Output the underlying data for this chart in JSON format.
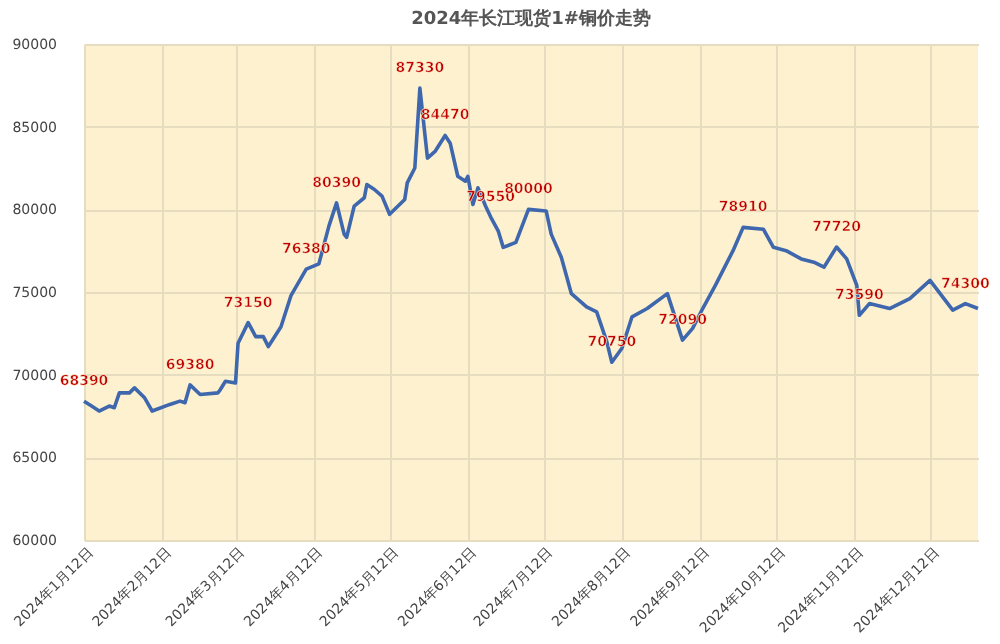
{
  "chart_data": {
    "type": "line",
    "title": "2024年长江现货1#铜价走势",
    "x": [
      "2024-01-12",
      "2024-01-15",
      "2024-01-18",
      "2024-01-22",
      "2024-01-24",
      "2024-01-26",
      "2024-01-30",
      "2024-02-01",
      "2024-02-05",
      "2024-02-08",
      "2024-02-15",
      "2024-02-19",
      "2024-02-21",
      "2024-02-23",
      "2024-02-27",
      "2024-03-05",
      "2024-03-06",
      "2024-03-08",
      "2024-03-12",
      "2024-03-13",
      "2024-03-17",
      "2024-03-20",
      "2024-03-23",
      "2024-03-25",
      "2024-03-30",
      "2024-04-03",
      "2024-04-09",
      "2024-04-14",
      "2024-04-18",
      "2024-04-21",
      "2024-04-24",
      "2024-04-25",
      "2024-04-28",
      "2024-05-02",
      "2024-05-03",
      "2024-05-06",
      "2024-05-09",
      "2024-05-12",
      "2024-05-18",
      "2024-05-19",
      "2024-05-22",
      "2024-05-24",
      "2024-05-27",
      "2024-05-30",
      "2024-06-03",
      "2024-06-05",
      "2024-06-08",
      "2024-06-11",
      "2024-06-12",
      "2024-06-14",
      "2024-06-16",
      "2024-06-19",
      "2024-06-21",
      "2024-06-24",
      "2024-06-26",
      "2024-07-01",
      "2024-07-06",
      "2024-07-13",
      "2024-07-15",
      "2024-07-19",
      "2024-07-23",
      "2024-07-29",
      "2024-08-02",
      "2024-08-06",
      "2024-08-08",
      "2024-08-12",
      "2024-08-16",
      "2024-08-22",
      "2024-08-30",
      "2024-09-05",
      "2024-09-09",
      "2024-09-13",
      "2024-09-18",
      "2024-09-25",
      "2024-09-29",
      "2024-10-07",
      "2024-10-11",
      "2024-10-16",
      "2024-10-22",
      "2024-10-27",
      "2024-10-31",
      "2024-11-05",
      "2024-11-09",
      "2024-11-13",
      "2024-11-14",
      "2024-11-18",
      "2024-11-26",
      "2024-12-04",
      "2024-12-12",
      "2024-12-21",
      "2024-12-26",
      "2024-12-31"
    ],
    "series": [
      {
        "color": "#3f67ad",
        "values": [
          68390,
          68100,
          67800,
          68100,
          68000,
          68900,
          68900,
          69200,
          68600,
          67800,
          68200,
          68400,
          68300,
          69380,
          68800,
          68900,
          69100,
          69600,
          69500,
          71900,
          73150,
          72300,
          72300,
          71700,
          72900,
          74800,
          76380,
          76700,
          79000,
          80390,
          78500,
          78300,
          80200,
          80700,
          81500,
          81200,
          80800,
          79700,
          80600,
          81600,
          82500,
          87330,
          83100,
          83500,
          84470,
          84000,
          82000,
          81700,
          82000,
          80300,
          81300,
          80200,
          79550,
          78700,
          77700,
          78000,
          80000,
          79900,
          78500,
          77100,
          74900,
          74100,
          73800,
          72000,
          70750,
          71600,
          73500,
          74000,
          74900,
          72090,
          72800,
          74000,
          75400,
          77500,
          78910,
          78800,
          77700,
          77500,
          77000,
          76800,
          76500,
          77720,
          77000,
          75400,
          73590,
          74300,
          74000,
          74600,
          75700,
          73900,
          74300,
          74000
        ],
        "value_labels": [
          "68390",
          null,
          null,
          null,
          null,
          null,
          null,
          null,
          null,
          null,
          null,
          null,
          null,
          "69380",
          null,
          null,
          null,
          null,
          null,
          null,
          "73150",
          null,
          null,
          null,
          null,
          null,
          "76380",
          null,
          null,
          "80390",
          null,
          null,
          null,
          null,
          null,
          null,
          null,
          null,
          null,
          null,
          null,
          "87330",
          null,
          null,
          "84470",
          null,
          null,
          null,
          null,
          null,
          null,
          null,
          "79550",
          null,
          null,
          null,
          "80000",
          null,
          null,
          null,
          null,
          null,
          null,
          null,
          "70750",
          null,
          null,
          null,
          null,
          "72090",
          null,
          null,
          null,
          null,
          "78910",
          null,
          null,
          null,
          null,
          null,
          null,
          "77720",
          null,
          null,
          "73590",
          null,
          null,
          null,
          null,
          null,
          "74300",
          null
        ]
      }
    ],
    "xlim": [
      "2024-01-12",
      "2024-12-31"
    ],
    "xticks": [
      {
        "value": "2024-01-12",
        "label": "2024年1月12日"
      },
      {
        "value": "2024-02-12",
        "label": "2024年2月12日"
      },
      {
        "value": "2024-03-12",
        "label": "2024年3月12日"
      },
      {
        "value": "2024-04-12",
        "label": "2024年4月12日"
      },
      {
        "value": "2024-05-12",
        "label": "2024年5月12日"
      },
      {
        "value": "2024-06-12",
        "label": "2024年6月12日"
      },
      {
        "value": "2024-07-12",
        "label": "2024年7月12日"
      },
      {
        "value": "2024-08-12",
        "label": "2024年8月12日"
      },
      {
        "value": "2024-09-12",
        "label": "2024年9月12日"
      },
      {
        "value": "2024-10-12",
        "label": "2024年10月12日"
      },
      {
        "value": "2024-11-12",
        "label": "2024年11月12日"
      },
      {
        "value": "2024-12-12",
        "label": "2024年12月12日"
      }
    ],
    "ylim": [
      60000,
      90000
    ],
    "yticks": [
      60000,
      65000,
      70000,
      75000,
      80000,
      85000,
      90000
    ],
    "grid": true,
    "marker": "none",
    "line_style": "solid"
  }
}
